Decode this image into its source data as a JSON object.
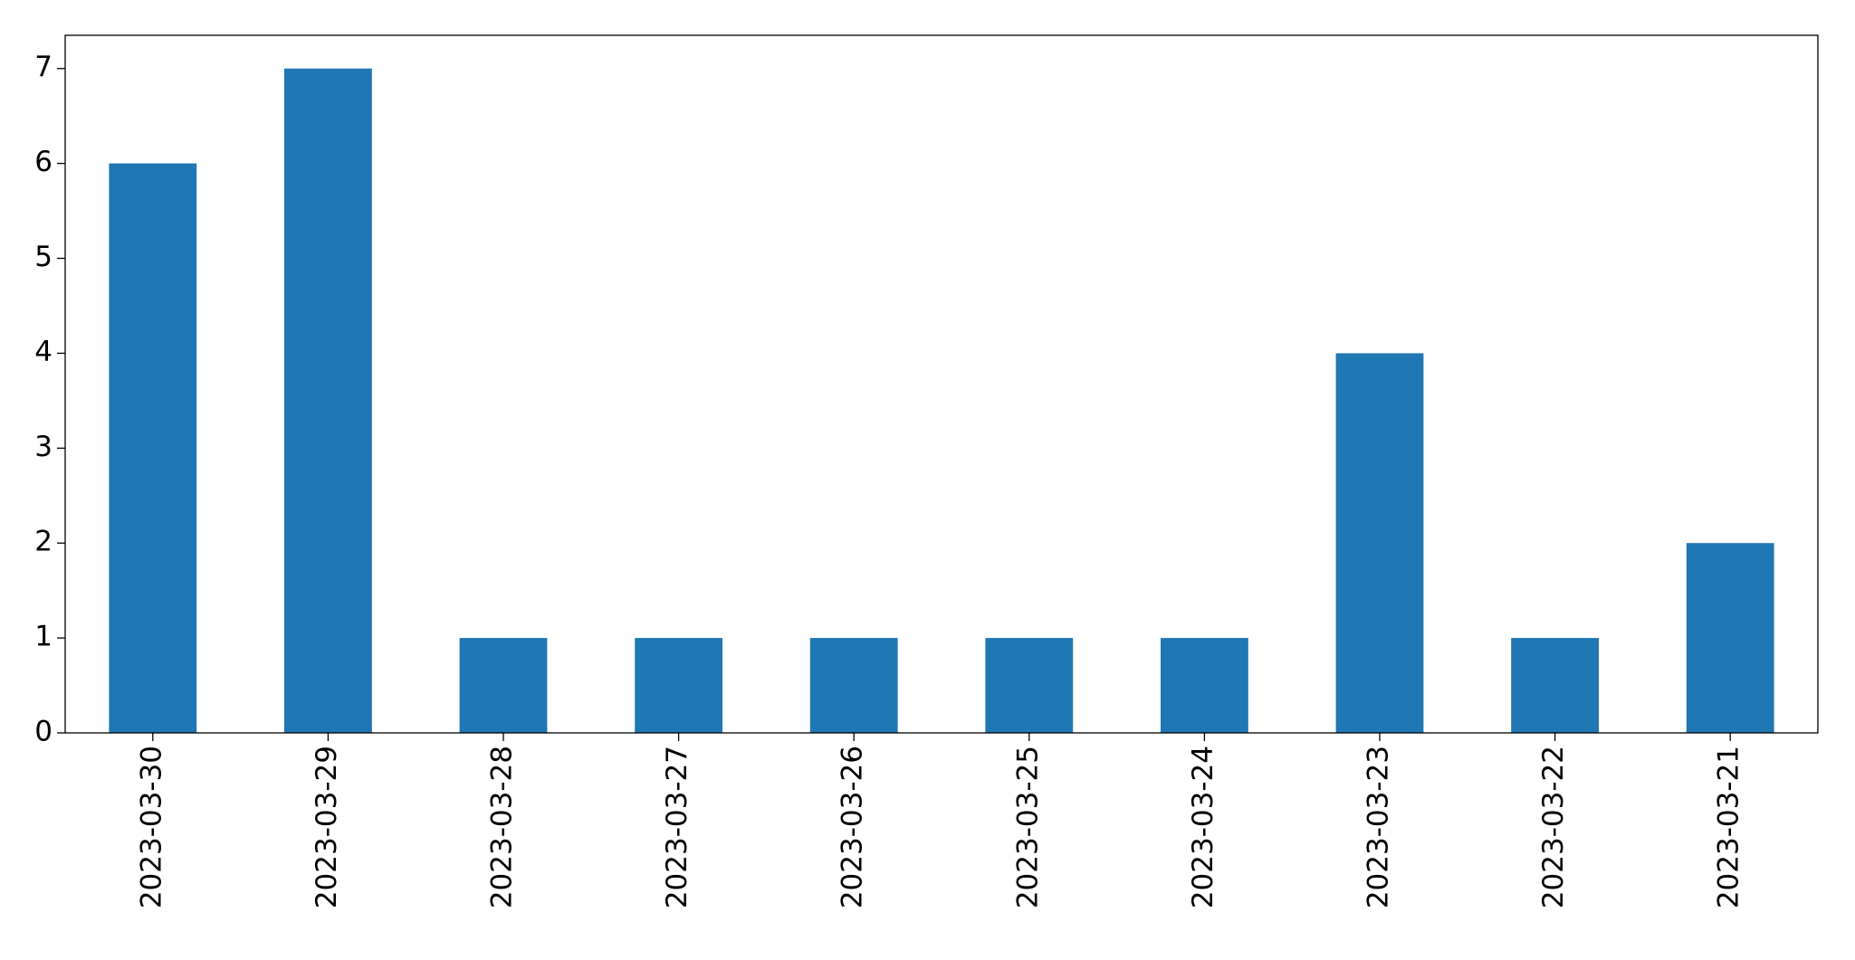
{
  "chart_data": {
    "type": "bar",
    "categories": [
      "2023-03-30",
      "2023-03-29",
      "2023-03-28",
      "2023-03-27",
      "2023-03-26",
      "2023-03-25",
      "2023-03-24",
      "2023-03-23",
      "2023-03-22",
      "2023-03-21"
    ],
    "values": [
      6,
      7,
      1,
      1,
      1,
      1,
      1,
      4,
      1,
      2
    ],
    "color": "#1f77b4",
    "ylim": [
      0,
      7.35
    ],
    "yticks": [
      0,
      1,
      2,
      3,
      4,
      5,
      6,
      7
    ],
    "grid": false
  }
}
